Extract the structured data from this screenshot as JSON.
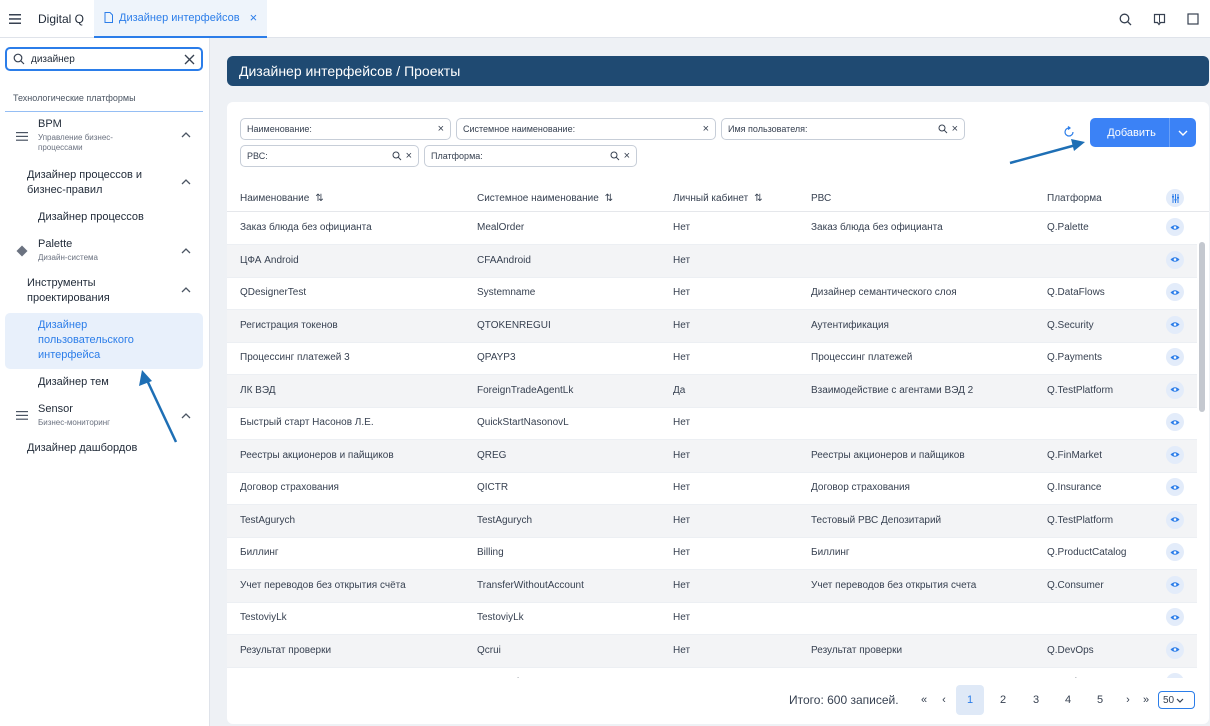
{
  "app": {
    "title": "Digital Q"
  },
  "tab": {
    "label": "Дизайнер интерфейсов"
  },
  "sidebar": {
    "search_value": "дизайнер",
    "section_title": "Технологические платформы",
    "items": [
      {
        "title": "BPM",
        "subtitle_line1": "Управление бизнес-",
        "subtitle_line2": "процессами"
      },
      {
        "title_line1": "Дизайнер процессов и",
        "title_line2": "бизнес-правил"
      },
      {
        "title": "Дизайнер процессов"
      },
      {
        "title": "Palette",
        "subtitle": "Дизайн-система"
      },
      {
        "title_line1": "Инструменты",
        "title_line2": "проектирования"
      },
      {
        "title_line1": "Дизайнер",
        "title_line2": "пользовательского",
        "title_line3": "интерфейса"
      },
      {
        "title": "Дизайнер тем"
      },
      {
        "title": "Sensor",
        "subtitle": "Бизнес-мониторинг"
      },
      {
        "title": "Дизайнер дашбордов"
      }
    ]
  },
  "page": {
    "title": "Дизайнер интерфейсов / Проекты"
  },
  "filters": {
    "name": "Наименование:",
    "system_name": "Системное наименование:",
    "user_name": "Имя пользователя:",
    "rvs": "РВС:",
    "platform": "Платформа:"
  },
  "actions": {
    "add_label": "Добавить"
  },
  "table": {
    "headers": [
      "Наименование",
      "Системное наименование",
      "Личный кабинет",
      "РВС",
      "Платформа"
    ],
    "rows": [
      [
        "Заказ блюда без официанта",
        "MealOrder",
        "Нет",
        "Заказ блюда без официанта",
        "Q.Palette"
      ],
      [
        "ЦФА Android",
        "CFAAndroid",
        "Нет",
        "",
        ""
      ],
      [
        "QDesignerTest",
        "Systemname",
        "Нет",
        "Дизайнер семантического слоя",
        "Q.DataFlows"
      ],
      [
        "Регистрация токенов",
        "QTOKENREGUI",
        "Нет",
        "Аутентификация",
        "Q.Security"
      ],
      [
        "Процессинг платежей 3",
        "QPAYP3",
        "Нет",
        "Процессинг платежей",
        "Q.Payments"
      ],
      [
        "ЛК ВЭД",
        "ForeignTradeAgentLk",
        "Да",
        "Взаимодействие с агентами ВЭД 2",
        "Q.TestPlatform"
      ],
      [
        "Быстрый старт Насонов Л.Е.",
        "QuickStartNasonovL",
        "Нет",
        "",
        ""
      ],
      [
        "Реестры акционеров и пайщиков",
        "QREG",
        "Нет",
        "Реестры акционеров и пайщиков",
        "Q.FinMarket"
      ],
      [
        "Договор страхования",
        "QICTR",
        "Нет",
        "Договор страхования",
        "Q.Insurance"
      ],
      [
        "TestAgurych",
        "TestAgurych",
        "Нет",
        "Тестовый РВС Депозитарий",
        "Q.TestPlatform"
      ],
      [
        "Биллинг",
        "Billing",
        "Нет",
        "Биллинг",
        "Q.ProductCatalog"
      ],
      [
        "Учет переводов без открытия счёта",
        "TransferWithoutAccount",
        "Нет",
        "Учет переводов без открытия счета",
        "Q.Consumer"
      ],
      [
        "TestoviyLk",
        "TestoviyLk",
        "Нет",
        "",
        ""
      ],
      [
        "Результат проверки",
        "Qcrui",
        "Нет",
        "Результат проверки",
        "Q.DevOps"
      ],
      [
        "Отправка одноразового кода",
        "OTPsender",
        "Нет",
        "Отправка одноразового кода",
        "Q.Environment"
      ]
    ]
  },
  "pagination": {
    "total": "Итого: 600 записей.",
    "pages": [
      "1",
      "2",
      "3",
      "4",
      "5"
    ],
    "current": "1",
    "page_size": "50"
  },
  "colors": {
    "accent": "#2b7de9",
    "header_bg": "#1f4a72",
    "button": "#3b82f6",
    "annotation_arrow": "#1e6fb5"
  }
}
